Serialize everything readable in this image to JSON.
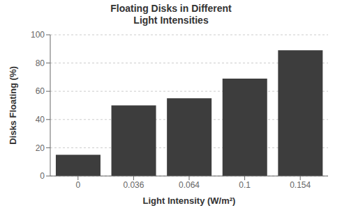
{
  "chart_data": {
    "type": "bar",
    "title": "Floating Disks in Different\nLight Intensities",
    "xlabel": "Light Intensity (W/m²)",
    "ylabel": "Disks Floating (%)",
    "categories": [
      "0",
      "0.036",
      "0.064",
      "0.1",
      "0.154"
    ],
    "values": [
      15,
      50,
      55,
      69,
      89
    ],
    "color": "#3d3d3d",
    "ylim": [
      0,
      100
    ],
    "yticks": [
      0,
      20,
      40,
      60,
      80,
      100
    ],
    "grid": true
  }
}
